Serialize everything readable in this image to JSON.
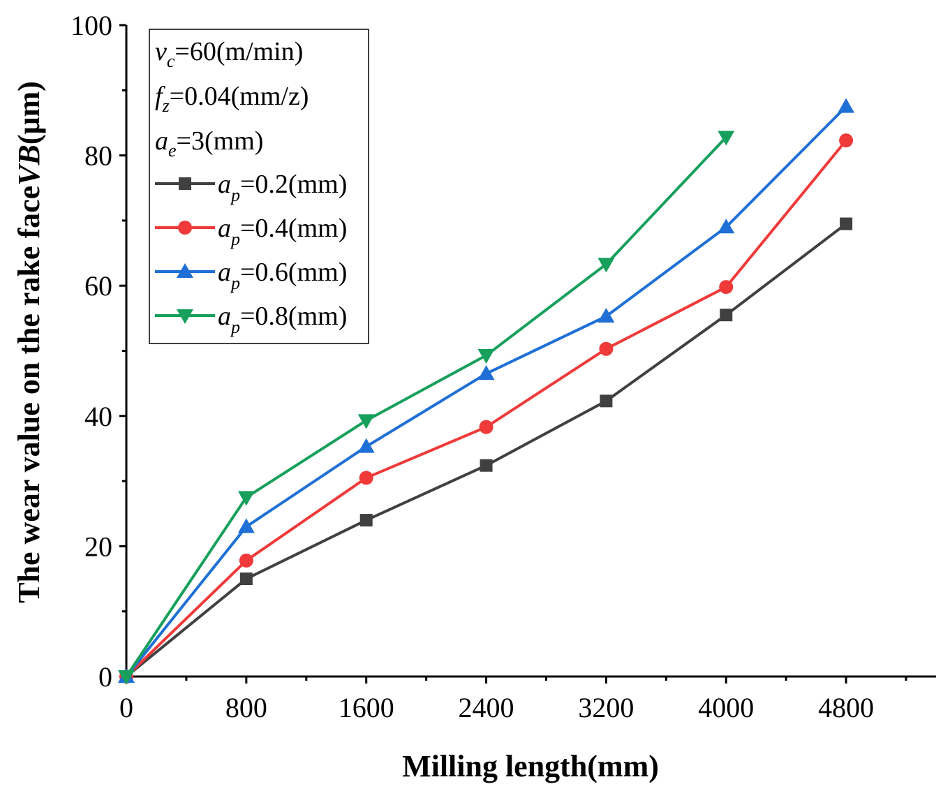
{
  "chart_data": {
    "type": "line",
    "title": "",
    "xlabel": "Milling length(mm)",
    "ylabel": {
      "main": "The wear value on the rake face",
      "symbol": "VB",
      "unit": "(μm)"
    },
    "xlim": [
      0,
      5400
    ],
    "ylim": [
      0,
      100
    ],
    "xticks": [
      0,
      800,
      1600,
      2400,
      3200,
      4000,
      4800
    ],
    "xtick_labels": [
      "0",
      "800",
      "1600",
      "2400",
      "3200",
      "4000",
      "4800"
    ],
    "yticks": [
      0,
      20,
      40,
      60,
      80,
      100
    ],
    "ytick_labels": [
      "0",
      "20",
      "40",
      "60",
      "80",
      "100"
    ],
    "x": [
      0,
      800,
      1600,
      2400,
      3200,
      4000,
      4800
    ],
    "legend_position": "top-left",
    "conditions": [
      {
        "var": "v",
        "sub": "c",
        "value": "=60(m/min)"
      },
      {
        "var": "f",
        "sub": "z",
        "value": "=0.04(mm/z)"
      },
      {
        "var": "a",
        "sub": "e",
        "value": "=3(mm)"
      }
    ],
    "series": [
      {
        "name": "a_p=0.2(mm)",
        "var": "a",
        "sub": "p",
        "value": "=0.2(mm)",
        "color": "#404040",
        "marker": "square",
        "values": [
          0,
          15,
          24,
          32.4,
          42.3,
          55.5,
          69.5
        ]
      },
      {
        "name": "a_p=0.4(mm)",
        "var": "a",
        "sub": "p",
        "value": "=0.4(mm)",
        "color": "#f03a3a",
        "marker": "circle",
        "values": [
          0,
          17.8,
          30.5,
          38.3,
          50.3,
          59.8,
          82.3
        ]
      },
      {
        "name": "a_p=0.6(mm)",
        "var": "a",
        "sub": "p",
        "value": "=0.6(mm)",
        "color": "#1f6fd6",
        "marker": "triangle-up",
        "values": [
          0,
          23,
          35.3,
          46.5,
          55.3,
          69,
          87.5
        ]
      },
      {
        "name": "a_p=0.8(mm)",
        "var": "a",
        "sub": "p",
        "value": "=0.8(mm)",
        "color": "#16a05c",
        "marker": "triangle-down",
        "values": [
          0,
          27.5,
          39.3,
          49.3,
          63.3,
          82.8,
          null
        ]
      }
    ]
  }
}
